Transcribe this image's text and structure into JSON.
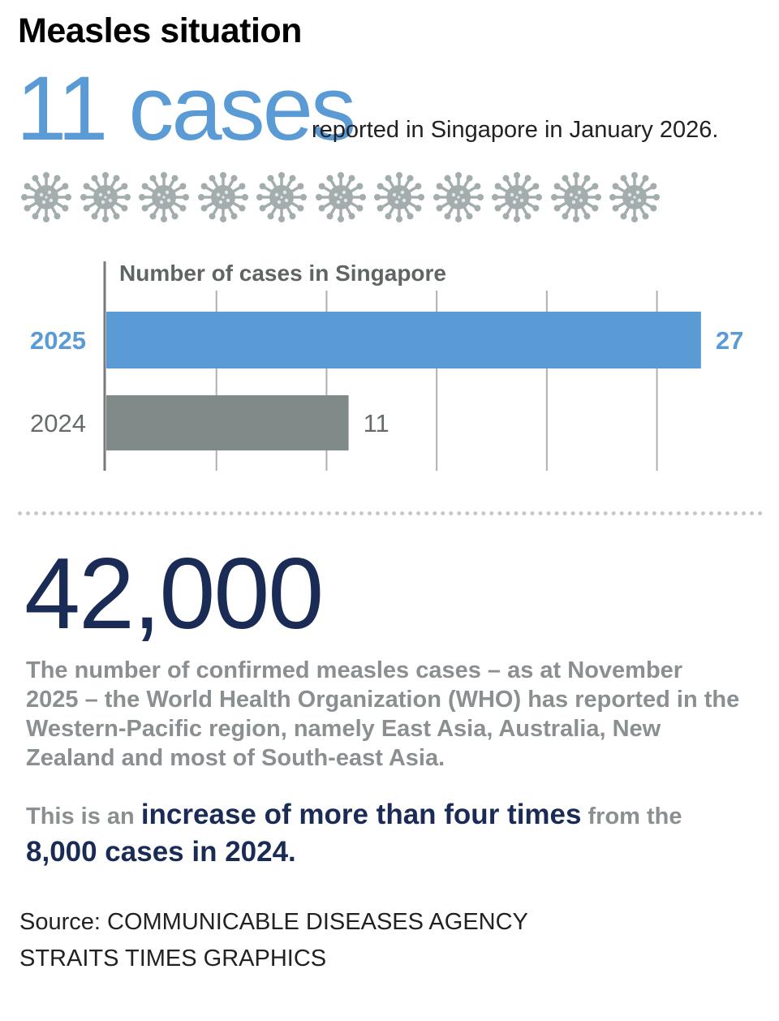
{
  "title": "Measles situation",
  "headline": {
    "big_text": "11 cases",
    "caption": "reported in Singapore in January 2026.",
    "color": "#5b9bd5"
  },
  "virus_icons": {
    "icon": "virus-icon",
    "count": 11,
    "color": "#a3adae"
  },
  "chart_data": {
    "type": "bar",
    "orientation": "horizontal",
    "title": "Number of cases in Singapore",
    "categories": [
      "2025",
      "2024"
    ],
    "values": [
      27,
      11
    ],
    "value_labels": [
      "27",
      "11"
    ],
    "colors": [
      "#5b9bd5",
      "#7f8a89"
    ],
    "xlim": [
      0,
      27.3
    ],
    "grid": true,
    "xlabel": "",
    "ylabel": ""
  },
  "stat": {
    "number": "42,000",
    "number_color": "#1a2c55",
    "description": "The number of confirmed measles cases – as at November 2025 – the World Health Organization (WHO) has reported in the Western-Pacific region, namely East Asia, Australia, New Zealand and most of South-east Asia."
  },
  "increase": {
    "part1": "This is an ",
    "highlight1": "increase of more than four times",
    "part2": " from the ",
    "highlight2": "8,000 cases in 2024."
  },
  "source": {
    "line1": "Source: COMMUNICABLE DISEASES AGENCY",
    "line2": "STRAITS TIMES GRAPHICS"
  }
}
